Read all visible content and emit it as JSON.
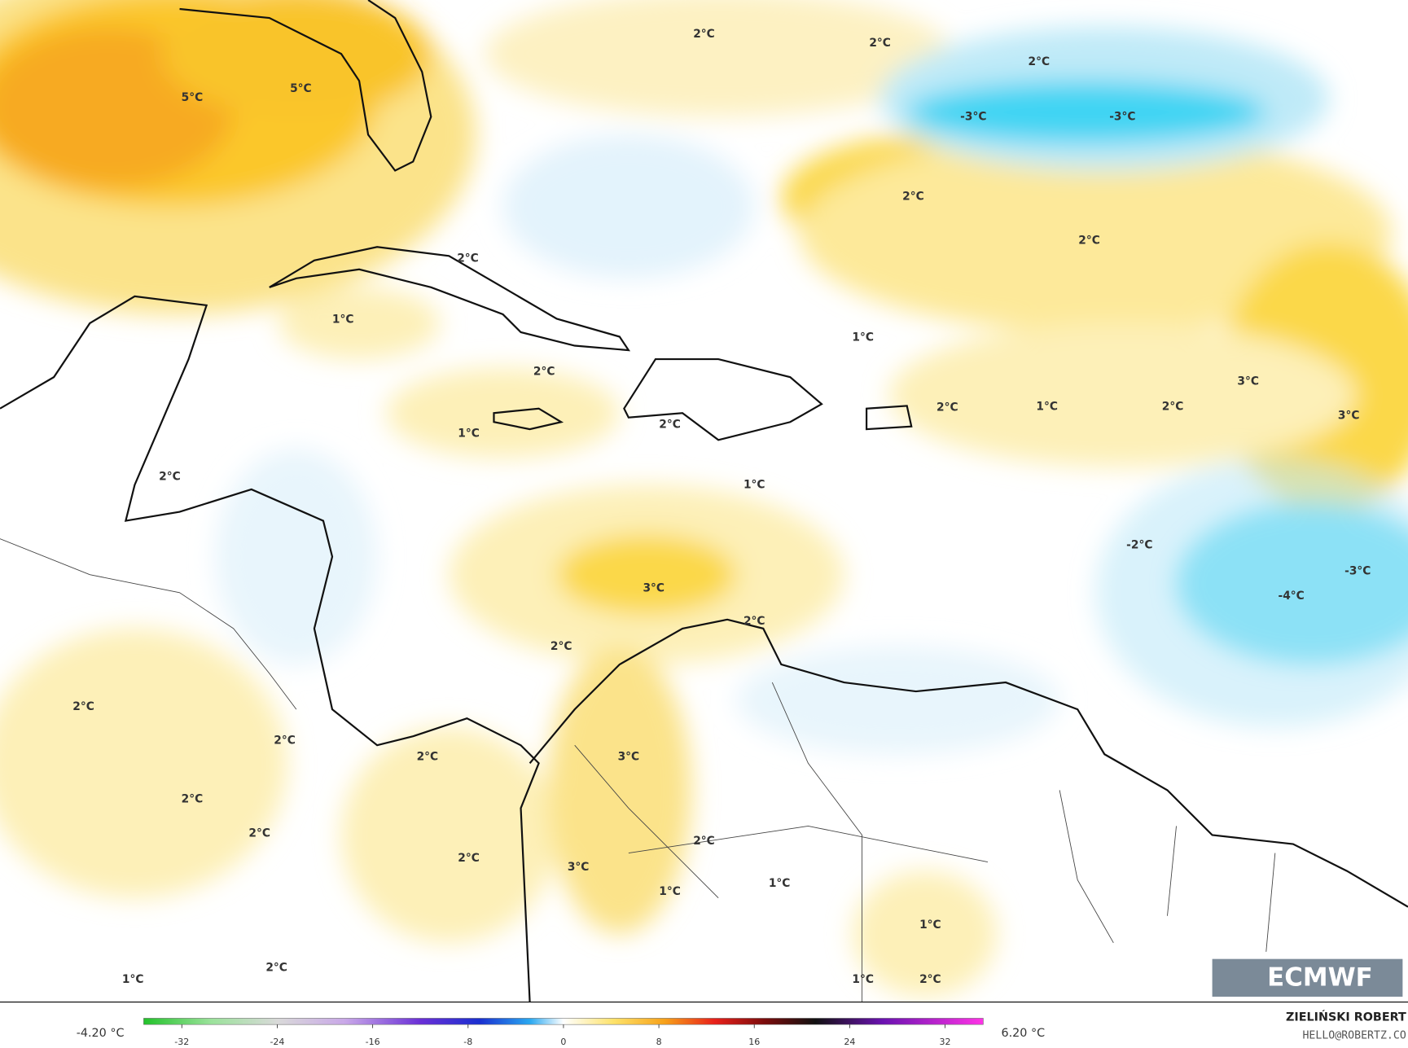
{
  "map": {
    "labels": [
      "2°C",
      "2°C",
      "2°C",
      "5°C",
      "5°C",
      "-3°C",
      "-3°C",
      "2°C",
      "2°C",
      "2°C",
      "1°C",
      "1°C",
      "2°C",
      "3°C",
      "2°C",
      "1°C",
      "2°C",
      "3°C",
      "1°C",
      "2°C",
      "2°C",
      "1°C",
      "-2°C",
      "-3°C",
      "-4°C",
      "3°C",
      "2°C",
      "2°C",
      "2°C",
      "2°C",
      "2°C",
      "3°C",
      "2°C",
      "2°C",
      "2°C",
      "2°C",
      "3°C",
      "1°C",
      "1°C",
      "1°C",
      "2°C",
      "1°C",
      "1°C",
      "2°C"
    ]
  },
  "colorbar": {
    "min_label": "-4.20 °C",
    "max_label": "6.20 °C",
    "lim": [
      -35.2,
      35.2
    ],
    "ticks": [
      -32,
      -24,
      -16,
      -8,
      0,
      8,
      16,
      24,
      32
    ]
  },
  "logo": "ECMWF",
  "credit": {
    "name": "ZIELIŃSKI ROBERT",
    "contact": "HELLO@ROBERTZ.CO"
  }
}
